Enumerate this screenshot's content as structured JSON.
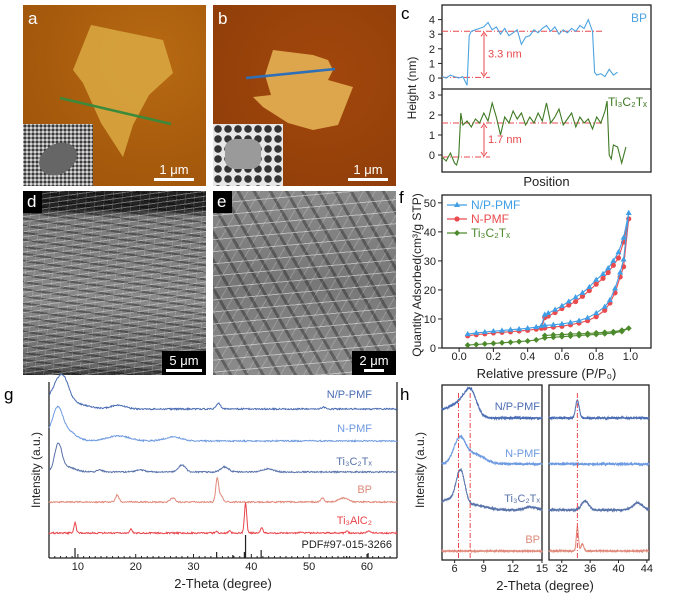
{
  "panels": {
    "a": {
      "label": "a",
      "scale_bar": "1 μm"
    },
    "b": {
      "label": "b",
      "scale_bar": "1 μm"
    },
    "c": {
      "label": "c"
    },
    "d": {
      "label": "d",
      "scale_bar": "5 μm"
    },
    "e": {
      "label": "e",
      "scale_bar": "2 μm"
    },
    "f": {
      "label": "f"
    },
    "g": {
      "label": "g"
    },
    "h": {
      "label": "h"
    }
  },
  "colors": {
    "np_pmf": "#3f9ee6",
    "n_pmf": "#ea4b4f",
    "ti3c2tx_f": "#4d8a2c",
    "bp_profile": "#4da3e0",
    "ti3c2tx_profile": "#3f7a24",
    "ref_line": "#e8484d",
    "xrd_np": "#4a6cb3",
    "xrd_n": "#6d9ae0",
    "xrd_ti3c2tx": "#5872aa",
    "xrd_bp": "#e0897a",
    "xrd_ti3alc2": "#e8454a",
    "xrd_pdf": "#222222",
    "afm_line_a": "#3b8a3b",
    "afm_line_b": "#2f6fb8"
  },
  "chart_data": [
    {
      "id": "c",
      "type": "line",
      "xlabel": "Position",
      "ylabel": "Height (nm)",
      "subplots": [
        {
          "name": "BP",
          "ylim": [
            -0.75,
            5.0
          ],
          "yticks": [
            "0",
            "1",
            "2",
            "3",
            "4"
          ],
          "xlim": [
            0,
            100
          ],
          "x": [
            0,
            2,
            4,
            6,
            8,
            10,
            11,
            12,
            13,
            14,
            16,
            18,
            20,
            22,
            24,
            26,
            28,
            30,
            32,
            34,
            36,
            38,
            40,
            42,
            44,
            46,
            48,
            50,
            52,
            54,
            56,
            58,
            60,
            62,
            64,
            66,
            68,
            69,
            70,
            71,
            72,
            73,
            74,
            76,
            78,
            80,
            82,
            84
          ],
          "y": [
            0.1,
            0.0,
            0.2,
            0.1,
            0.0,
            0.1,
            -0.2,
            -0.5,
            2.9,
            3.2,
            3.3,
            3.4,
            3.5,
            3.8,
            3.3,
            3.5,
            3.0,
            3.4,
            2.9,
            3.1,
            3.3,
            2.3,
            2.8,
            2.9,
            3.3,
            3.1,
            3.4,
            3.6,
            3.2,
            3.5,
            3.0,
            3.3,
            3.1,
            3.4,
            3.2,
            3.6,
            3.4,
            3.7,
            4.0,
            3.6,
            3.2,
            0.4,
            0.2,
            0.3,
            0.1,
            0.6,
            0.2,
            0.4
          ],
          "level_high": 3.2,
          "level_low": 0.05,
          "annotation": "3.3 nm"
        },
        {
          "name": "Ti₃C₂Tₓ",
          "ylim": [
            -0.85,
            3.3
          ],
          "yticks": [
            "0",
            "1",
            "2",
            "3"
          ],
          "xlim": [
            0,
            100
          ],
          "x": [
            0,
            2,
            4,
            6,
            7,
            8,
            9,
            10,
            12,
            14,
            16,
            18,
            20,
            22,
            24,
            26,
            28,
            30,
            32,
            34,
            36,
            38,
            40,
            42,
            44,
            46,
            48,
            50,
            52,
            54,
            56,
            58,
            60,
            62,
            64,
            66,
            68,
            70,
            72,
            74,
            76,
            78,
            79,
            80,
            81,
            82,
            84,
            86,
            88
          ],
          "y": [
            -0.1,
            -0.3,
            0.1,
            -0.4,
            -0.5,
            -0.1,
            2.1,
            1.5,
            1.7,
            1.4,
            1.8,
            1.6,
            2.1,
            1.7,
            2.6,
            1.9,
            1.0,
            1.9,
            1.6,
            2.2,
            1.8,
            2.1,
            1.5,
            1.9,
            1.6,
            2.1,
            1.7,
            2.6,
            1.6,
            1.9,
            2.3,
            1.5,
            1.8,
            2.1,
            1.4,
            1.9,
            1.6,
            1.8,
            1.3,
            1.9,
            1.6,
            2.2,
            2.7,
            0.0,
            -0.2,
            0.5,
            0.4,
            -0.4,
            0.4
          ],
          "level_high": 1.6,
          "level_low": -0.1,
          "annotation": "1.7 nm"
        }
      ]
    },
    {
      "id": "f",
      "type": "line",
      "xlabel": "Relative pressure (P/P₀)",
      "ylabel": "Quantity Adsorbed(cm³/g STP)",
      "xlim": [
        -0.1,
        1.12
      ],
      "ylim": [
        0,
        52.7
      ],
      "xticks": [
        "0.0",
        "0.2",
        "0.4",
        "0.6",
        "0.8",
        "1.0"
      ],
      "yticks": [
        "0",
        "10",
        "20",
        "30",
        "40",
        "50"
      ],
      "legend_position": "top-left",
      "series": [
        {
          "name": "N/P-PMF",
          "marker": "triangle",
          "x": [
            0.05,
            0.1,
            0.15,
            0.2,
            0.25,
            0.3,
            0.35,
            0.4,
            0.45,
            0.5,
            0.55,
            0.6,
            0.65,
            0.7,
            0.75,
            0.8,
            0.85,
            0.88,
            0.91,
            0.94,
            0.96,
            0.99,
            0.96,
            0.93,
            0.9,
            0.87,
            0.84,
            0.8,
            0.76,
            0.72,
            0.68,
            0.64,
            0.6,
            0.56,
            0.52,
            0.5,
            0.48
          ],
          "y": [
            4.8,
            5.2,
            5.5,
            5.8,
            6.0,
            6.3,
            6.5,
            6.8,
            7.2,
            7.8,
            8.0,
            8.3,
            8.8,
            9.4,
            10.4,
            12.0,
            14.2,
            16.5,
            20.5,
            26.0,
            30.5,
            46.5,
            38.0,
            33.0,
            30.0,
            27.5,
            25.5,
            23.5,
            21.0,
            19.0,
            17.5,
            16.0,
            14.5,
            13.2,
            12.0,
            11.5,
            7.6
          ]
        },
        {
          "name": "N-PMF",
          "marker": "circle",
          "x": [
            0.05,
            0.1,
            0.15,
            0.2,
            0.25,
            0.3,
            0.35,
            0.4,
            0.45,
            0.5,
            0.55,
            0.6,
            0.65,
            0.7,
            0.75,
            0.8,
            0.85,
            0.88,
            0.91,
            0.94,
            0.96,
            0.99,
            0.96,
            0.93,
            0.9,
            0.87,
            0.84,
            0.8,
            0.76,
            0.72,
            0.68,
            0.64,
            0.6,
            0.56,
            0.52,
            0.5,
            0.48
          ],
          "y": [
            4.2,
            4.6,
            4.9,
            5.2,
            5.4,
            5.6,
            5.9,
            6.1,
            6.5,
            6.9,
            7.2,
            7.5,
            8.0,
            8.6,
            9.4,
            10.8,
            13.0,
            15.5,
            19.0,
            24.5,
            28.0,
            44.5,
            36.5,
            31.0,
            28.5,
            26.0,
            24.0,
            22.0,
            19.8,
            17.8,
            16.0,
            14.8,
            13.6,
            12.2,
            11.0,
            10.5,
            6.8
          ]
        },
        {
          "name": "Ti₃C₂Tₓ",
          "marker": "diamond",
          "x": [
            0.05,
            0.1,
            0.15,
            0.2,
            0.25,
            0.3,
            0.35,
            0.4,
            0.45,
            0.5,
            0.55,
            0.6,
            0.65,
            0.7,
            0.75,
            0.8,
            0.85,
            0.9,
            0.95,
            0.99,
            0.95,
            0.9,
            0.85,
            0.8,
            0.75,
            0.7,
            0.65,
            0.6,
            0.55,
            0.5
          ],
          "y": [
            1.0,
            1.2,
            1.4,
            1.6,
            1.8,
            2.0,
            2.2,
            2.4,
            2.8,
            3.5,
            3.7,
            3.9,
            4.1,
            4.3,
            4.5,
            4.7,
            4.9,
            5.2,
            5.7,
            6.8,
            6.1,
            5.6,
            5.4,
            5.2,
            5.0,
            4.9,
            4.8,
            4.6,
            4.5,
            4.3
          ]
        }
      ]
    },
    {
      "id": "g",
      "type": "line",
      "xlabel": "2-Theta (degree)",
      "ylabel": "Intensity (a.u.)",
      "xlim": [
        5,
        65.2
      ],
      "ylim": [
        0,
        176
      ],
      "xticks": [
        "10",
        "20",
        "30",
        "40",
        "50",
        "60"
      ],
      "series": [
        {
          "name": "N/P-PMF",
          "offset": 149,
          "peaks": [
            [
              5,
              8,
              2.5
            ],
            [
              6.3,
              12,
              0.9
            ],
            [
              7.6,
              20,
              0.9
            ],
            [
              9,
              5,
              2.5
            ],
            [
              17,
              4,
              1.2
            ],
            [
              34.3,
              6,
              0.35
            ],
            [
              52.5,
              2,
              0.3
            ]
          ]
        },
        {
          "name": "N-PMF",
          "offset": 117,
          "peaks": [
            [
              5,
              8,
              2.5
            ],
            [
              6.5,
              23,
              0.8
            ],
            [
              8,
              8,
              1.5
            ],
            [
              17,
              5,
              2
            ],
            [
              26.5,
              4,
              1.5
            ]
          ]
        },
        {
          "name": "Ti₃C₂Tₓ",
          "offset": 86,
          "peaks": [
            [
              6.6,
              26,
              0.6
            ],
            [
              8,
              5,
              1.5
            ],
            [
              13.8,
              2,
              0.5
            ],
            [
              20.8,
              2,
              0.8
            ],
            [
              28,
              7,
              0.6
            ],
            [
              35.4,
              5,
              0.7
            ],
            [
              42.8,
              3,
              1
            ]
          ]
        },
        {
          "name": "BP",
          "offset": 56,
          "peaks": [
            [
              16.8,
              7,
              0.3
            ],
            [
              26.4,
              4,
              0.4
            ],
            [
              34.1,
              24,
              0.25
            ],
            [
              34.8,
              6,
              0.3
            ],
            [
              52.3,
              4,
              0.3
            ],
            [
              55.9,
              4,
              0.8
            ]
          ]
        },
        {
          "name": "Ti₃AlC₂",
          "offset": 25,
          "peaks": [
            [
              9.5,
              10,
              0.2
            ],
            [
              19.2,
              4,
              0.2
            ],
            [
              34,
              2,
              0.2
            ],
            [
              36.2,
              2,
              0.2
            ],
            [
              39,
              30,
              0.2
            ],
            [
              41.8,
              6,
              0.2
            ],
            [
              48.5,
              1,
              0.2
            ],
            [
              56.5,
              2,
              0.2
            ],
            [
              60.3,
              2,
              0.3
            ]
          ]
        }
      ],
      "reference": {
        "name": "PDF#97-015-3266",
        "sticks": [
          [
            9.5,
            10
          ],
          [
            34,
            6
          ],
          [
            36.8,
            3
          ],
          [
            38.8,
            6
          ],
          [
            39,
            23
          ],
          [
            41.7,
            8
          ],
          [
            56.5,
            2
          ],
          [
            60.2,
            5
          ]
        ]
      }
    },
    {
      "id": "h",
      "type": "line",
      "xlabel": "2-Theta (degree)",
      "ylabel": "Intensity (a.u.)",
      "ylim": [
        0,
        175
      ],
      "left": {
        "xlim": [
          4.7,
          15
        ],
        "xticks": [
          "6",
          "9",
          "12",
          "15"
        ],
        "ref_lines": [
          6.4,
          7.6
        ]
      },
      "right": {
        "xlim": [
          30.2,
          44.3
        ],
        "xticks": [
          "32",
          "36",
          "40",
          "44"
        ],
        "ref_lines": [
          34.2
        ]
      },
      "series": [
        {
          "name": "N/P-PMF",
          "offset": 142,
          "left_peaks": [
            [
              4.7,
              8,
              1.2
            ],
            [
              6.8,
              14,
              0.9
            ],
            [
              7.7,
              20,
              0.6
            ]
          ],
          "right_peaks": [
            [
              34.2,
              18,
              0.25
            ]
          ]
        },
        {
          "name": "N-PMF",
          "offset": 96,
          "left_peaks": [
            [
              6.5,
              24,
              0.6
            ],
            [
              8,
              10,
              1
            ]
          ],
          "right_peaks": []
        },
        {
          "name": "Ti₃C₂Tₓ",
          "offset": 50,
          "left_peaks": [
            [
              5.2,
              10,
              0.8
            ],
            [
              6.6,
              36,
              0.45
            ],
            [
              8,
              5,
              1.2
            ],
            [
              13.8,
              3,
              0.6
            ]
          ],
          "right_peaks": [
            [
              35.3,
              9,
              0.5
            ],
            [
              42.7,
              7,
              0.7
            ]
          ]
        },
        {
          "name": "BP",
          "offset": 9,
          "left_peaks": [],
          "right_peaks": [
            [
              34.2,
              24,
              0.15
            ],
            [
              34.9,
              7,
              0.2
            ]
          ]
        }
      ]
    }
  ]
}
